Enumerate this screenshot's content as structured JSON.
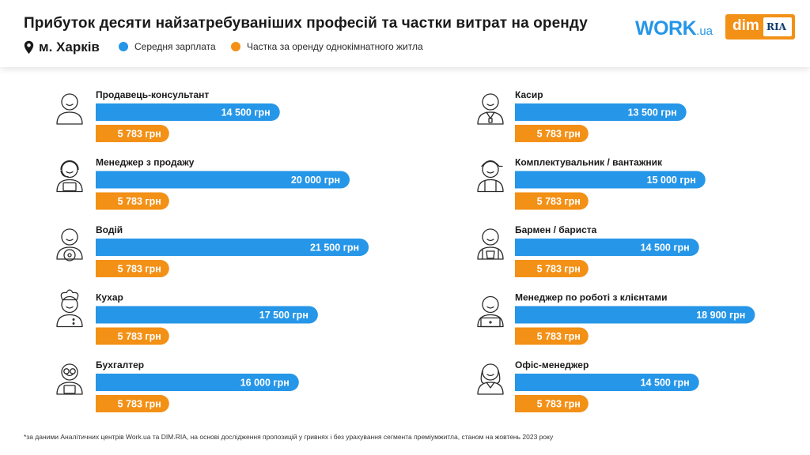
{
  "header": {
    "title": "Прибуток десяти найзатребуваніших професій та частки витрат на оренду",
    "city": "м. Харків",
    "legend": {
      "salary": "Середня зарплата",
      "rent": "Частка за оренду однокімнатного житла"
    },
    "logos": {
      "work_main": "WORK",
      "work_domain": ".ua",
      "dim": "dim",
      "ria": "RIA"
    }
  },
  "colors": {
    "salary": "#2596e8",
    "rent": "#f39016"
  },
  "chart_data": {
    "type": "bar",
    "orientation": "horizontal",
    "series": [
      {
        "name": "Середня зарплата",
        "color": "#2596e8"
      },
      {
        "name": "Частка за оренду однокімнатного житла",
        "color": "#f39016"
      }
    ],
    "unit": "грн",
    "items": [
      {
        "profession": "Продавець-консультант",
        "icon": "seller-icon",
        "salary": 14500,
        "salary_label": "14 500 грн",
        "rent": 5783,
        "rent_label": "5 783 грн"
      },
      {
        "profession": "Менеджер з продажу",
        "icon": "headset-manager-icon",
        "salary": 20000,
        "salary_label": "20 000 грн",
        "rent": 5783,
        "rent_label": "5 783 грн"
      },
      {
        "profession": "Водій",
        "icon": "driver-icon",
        "salary": 21500,
        "salary_label": "21 500 грн",
        "rent": 5783,
        "rent_label": "5 783 грн"
      },
      {
        "profession": "Кухар",
        "icon": "chef-icon",
        "salary": 17500,
        "salary_label": "17 500 грн",
        "rent": 5783,
        "rent_label": "5 783 грн"
      },
      {
        "profession": "Бухгалтер",
        "icon": "accountant-icon",
        "salary": 16000,
        "salary_label": "16 000 грн",
        "rent": 5783,
        "rent_label": "5 783 грн"
      },
      {
        "profession": "Касир",
        "icon": "cashier-icon",
        "salary": 13500,
        "salary_label": "13 500 грн",
        "rent": 5783,
        "rent_label": "5 783 грн"
      },
      {
        "profession": "Комплектувальник / вантажник",
        "icon": "loader-icon",
        "salary": 15000,
        "salary_label": "15 000 грн",
        "rent": 5783,
        "rent_label": "5 783 грн"
      },
      {
        "profession": "Бармен / бариста",
        "icon": "barista-icon",
        "salary": 14500,
        "salary_label": "14 500 грн",
        "rent": 5783,
        "rent_label": "5 783 грн"
      },
      {
        "profession": "Менеджер по роботі з клієнтами",
        "icon": "client-manager-icon",
        "salary": 18900,
        "salary_label": "18 900 грн",
        "rent": 5783,
        "rent_label": "5 783 грн"
      },
      {
        "profession": "Офіс-менеджер",
        "icon": "office-manager-icon",
        "salary": 14500,
        "salary_label": "14 500 грн",
        "rent": 5783,
        "rent_label": "5 783 грн"
      }
    ]
  },
  "footnote": "*за даними Аналітичних центрів Work.ua та DIM.RIA, на основі дослідження пропозицій у гривнях і без урахування сегмента преміумжитла, станом на жовтень 2023 року"
}
